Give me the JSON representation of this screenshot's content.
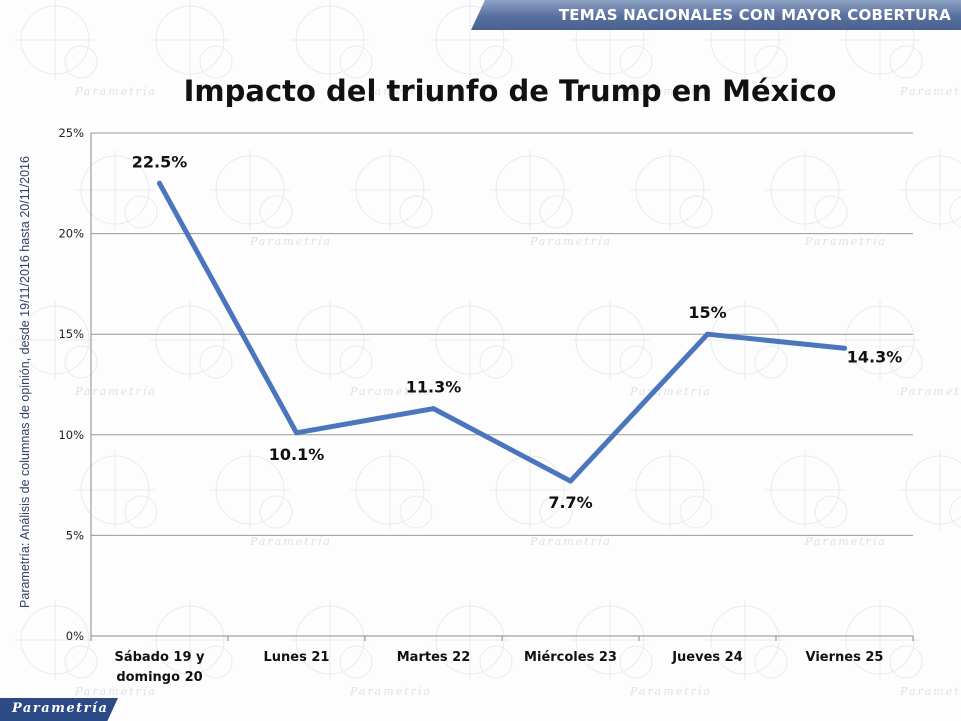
{
  "header": {
    "banner_text": "TEMAS NACIONALES CON MAYOR COBERTURA"
  },
  "side_note": "Parametría: Análisis de columnas de opinión, desde 19/11/2016 hasta  20/11/2016",
  "brand": {
    "footer_logo_text": "Parametría",
    "watermark_word": "Parametría"
  },
  "colors": {
    "series": "#4b76bd",
    "banner": "#58709f",
    "footer": "#2c4a85",
    "grid": "#9a9a9a"
  },
  "chart_data": {
    "type": "line",
    "title": "Impacto del triunfo de Trump en México",
    "xlabel": "",
    "ylabel": "",
    "categories": [
      "Sábado 19 y\ndomingo 20",
      "Lunes 21",
      "Martes 22",
      "Miércoles 23",
      "Jueves 24",
      "Viernes 25"
    ],
    "series": [
      {
        "values": [
          22.5,
          10.1,
          11.3,
          7.7,
          15,
          14.3
        ],
        "labels": [
          "22.5%",
          "10.1%",
          "11.3%",
          "7.7%",
          "15%",
          "14.3%"
        ]
      }
    ],
    "ylim": [
      0,
      25
    ],
    "yticks": [
      0,
      5,
      10,
      15,
      20,
      25
    ],
    "ytick_labels": [
      "0%",
      "5%",
      "10%",
      "15%",
      "20%",
      "25%"
    ],
    "grid": true,
    "legend": "none"
  }
}
